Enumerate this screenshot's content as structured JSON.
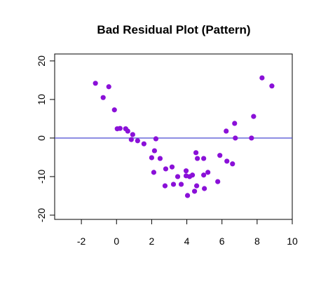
{
  "chart_data": {
    "type": "scatter",
    "title": "Bad Residual Plot (Pattern)",
    "x": [
      -1.2,
      -0.76,
      -0.44,
      -0.12,
      0.04,
      0.2,
      0.52,
      0.64,
      0.84,
      0.92,
      1.2,
      1.56,
      2.0,
      2.12,
      2.16,
      2.24,
      2.48,
      2.8,
      2.76,
      3.16,
      3.24,
      3.48,
      3.68,
      3.96,
      3.96,
      4.04,
      4.16,
      4.32,
      4.44,
      4.52,
      4.56,
      4.6,
      4.96,
      4.96,
      5.0,
      5.2,
      5.76,
      5.88,
      6.24,
      6.28,
      6.6,
      6.72,
      6.76,
      7.68,
      7.8,
      8.28,
      8.84
    ],
    "y": [
      14.2,
      10.5,
      13.3,
      7.3,
      2.4,
      2.5,
      2.4,
      1.8,
      -0.4,
      0.9,
      -0.7,
      -1.5,
      -5.1,
      -8.9,
      -3.3,
      -0.2,
      -5.3,
      -8.0,
      -12.4,
      -7.5,
      -12.0,
      -10.0,
      -12.0,
      -8.5,
      -9.8,
      -14.9,
      -10.0,
      -9.6,
      -13.8,
      -3.8,
      -12.4,
      -5.3,
      -5.3,
      -9.6,
      -13.1,
      -8.9,
      -11.3,
      -4.5,
      1.8,
      -6.0,
      -6.7,
      3.8,
      0,
      0,
      5.6,
      15.6,
      13.5
    ],
    "color": "#8a10d8",
    "hline": 0,
    "hline_color": "#5b5bd6",
    "xlim": [
      -3.52,
      10
    ],
    "ylim": [
      -21.1,
      21.8
    ],
    "xticks": [
      -2,
      0,
      2,
      4,
      6,
      8,
      10
    ],
    "yticks": [
      -20,
      -10,
      0,
      10,
      20
    ]
  }
}
